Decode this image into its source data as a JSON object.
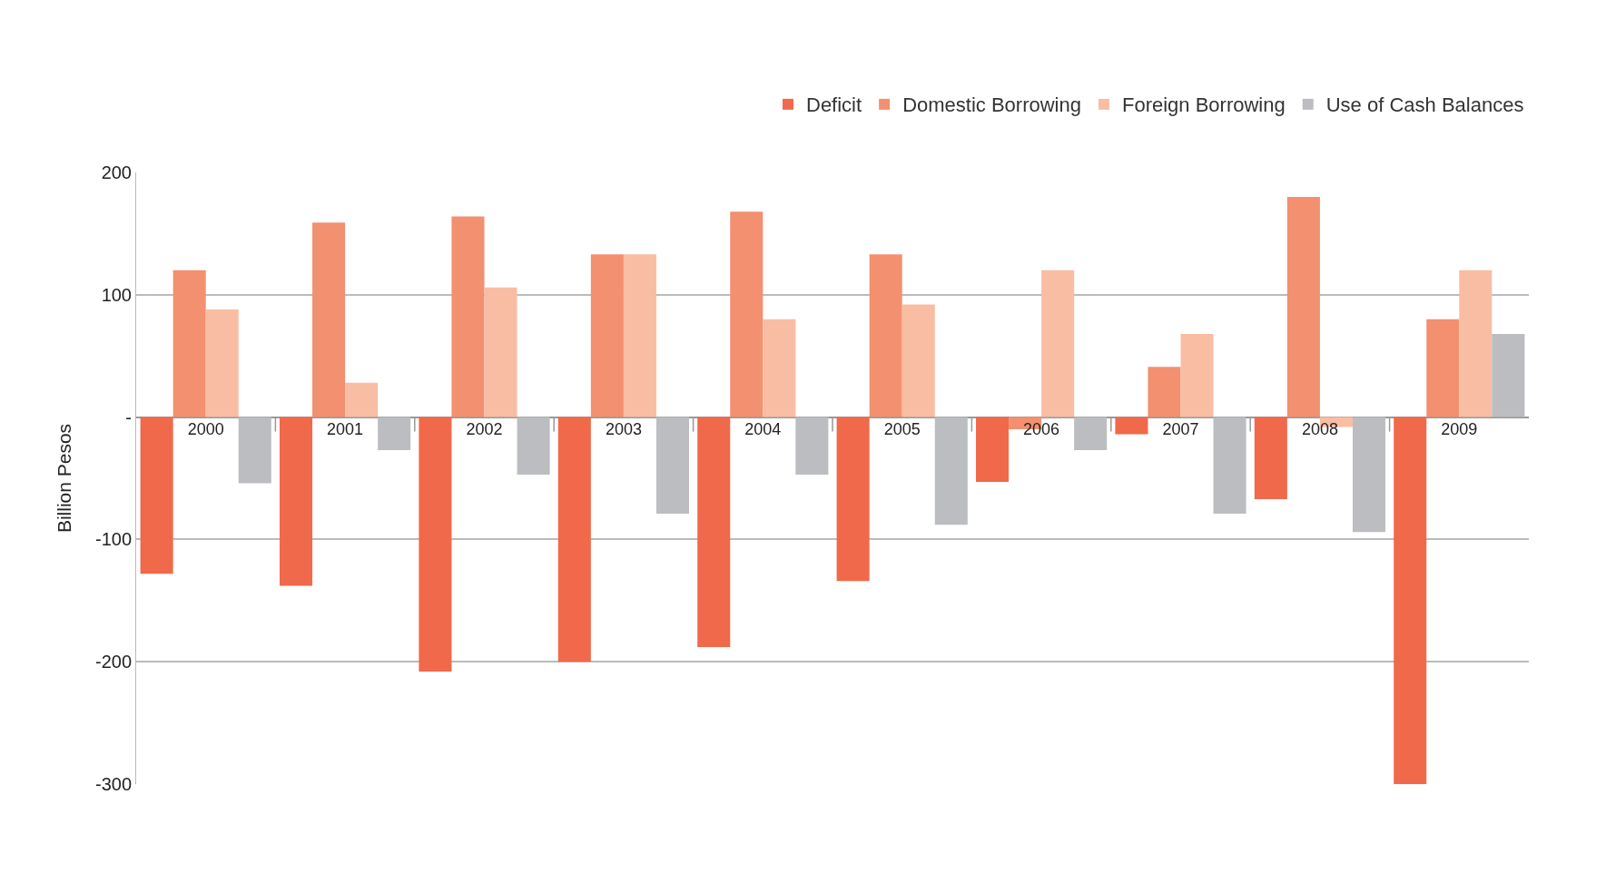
{
  "chart_data": {
    "type": "bar",
    "ylabel": "Billion Pesos",
    "categories": [
      "2000",
      "2001",
      "2002",
      "2003",
      "2004",
      "2005",
      "2006",
      "2007",
      "2008",
      "2009"
    ],
    "series": [
      {
        "name": "Deficit",
        "color": "#f0694a",
        "values": [
          -128,
          -138,
          -208,
          -200,
          -188,
          -134,
          -53,
          -14,
          -67,
          -300
        ]
      },
      {
        "name": "Domestic Borrowing",
        "color": "#f29070",
        "values": [
          120,
          159,
          164,
          133,
          168,
          133,
          -10,
          41,
          180,
          80
        ]
      },
      {
        "name": "Foreign Borrowing",
        "color": "#f9bda3",
        "values": [
          88,
          28,
          106,
          133,
          80,
          92,
          120,
          68,
          -8,
          120
        ]
      },
      {
        "name": "Use of Cash Balances",
        "color": "#bcbdc0",
        "values": [
          -54,
          -27,
          -47,
          -79,
          -47,
          -88,
          -27,
          -79,
          -94,
          68
        ]
      }
    ],
    "ylim": [
      -300,
      200
    ],
    "yticks": [
      -300,
      -200,
      -100,
      {
        "value": 0,
        "label": "-"
      },
      100,
      200
    ],
    "grid": "y",
    "legend": "top right"
  }
}
